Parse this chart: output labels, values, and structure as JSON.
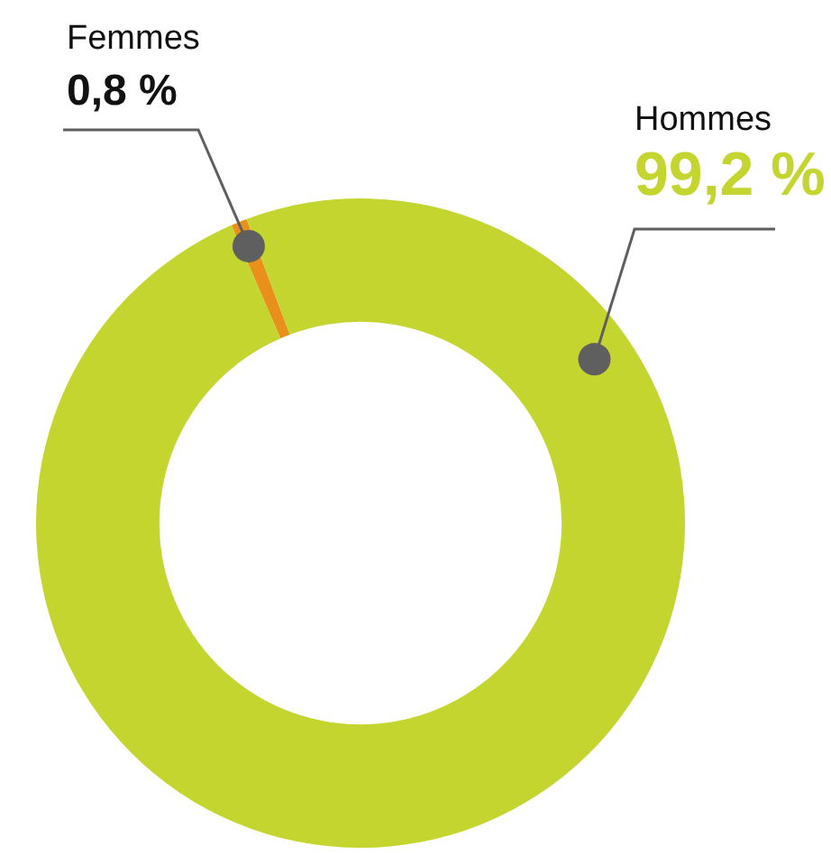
{
  "chart_data": {
    "type": "donut",
    "categories": [
      "Femmes",
      "Hommes"
    ],
    "values": [
      0.8,
      99.2
    ],
    "colors": [
      "#e8901a",
      "#c4d52f"
    ],
    "value_labels": [
      "0,8 %",
      "99,2 %"
    ],
    "legend": false
  }
}
